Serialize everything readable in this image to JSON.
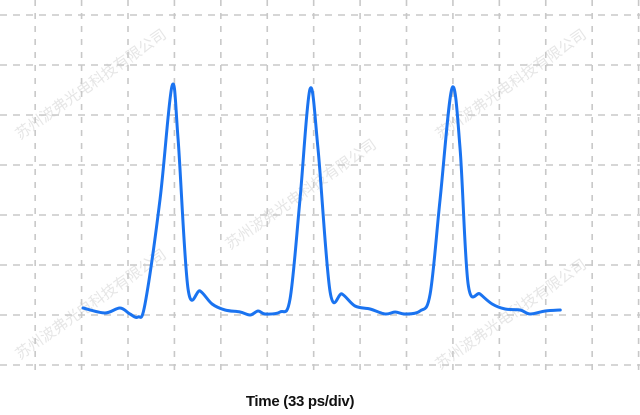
{
  "chart_data": {
    "type": "line",
    "title": "",
    "xlabel": "Time (33 ps/div)",
    "ylabel": "",
    "xlim": [
      -58,
      397
    ],
    "ylim": [
      -2,
      6.3
    ],
    "x_grid_step": 33,
    "y_grid_step": 1,
    "grid": true,
    "grid_style": "dashed",
    "line_color": "#1a73f0",
    "grid_color": "#c8c8c8",
    "series": [
      {
        "x": [
          1.0,
          16.6,
          27.3,
          34.4,
          40.1,
          45.1,
          55.8,
          64.3,
          68.6,
          75.7,
          84.3,
          92.8,
          102.0,
          112.7,
          119.8,
          125.5,
          130.4,
          141.1,
          148.2,
          155.3,
          162.4,
          168.1,
          176.7,
          185.2,
          194.4,
          205.1,
          215.8,
          222.9,
          230.0,
          240.6,
          247.8,
          254.9,
          263.4,
          269.1,
          274.8,
          283.3,
          291.9,
          301.1,
          311.8,
          318.9,
          329.6,
          340.3
        ],
        "y": [
          0.14,
          0.04,
          0.14,
          0.02,
          -0.04,
          0.22,
          2.32,
          4.58,
          3.52,
          0.52,
          0.48,
          0.22,
          0.1,
          0.06,
          0.0,
          0.08,
          0.02,
          0.06,
          0.32,
          2.32,
          4.52,
          3.32,
          0.46,
          0.42,
          0.18,
          0.12,
          0.02,
          0.06,
          0.02,
          0.08,
          0.42,
          2.32,
          4.54,
          3.32,
          0.62,
          0.42,
          0.22,
          0.12,
          0.1,
          0.02,
          0.08,
          0.1
        ]
      }
    ]
  },
  "watermark": "苏州波弗光电科技有限公司"
}
